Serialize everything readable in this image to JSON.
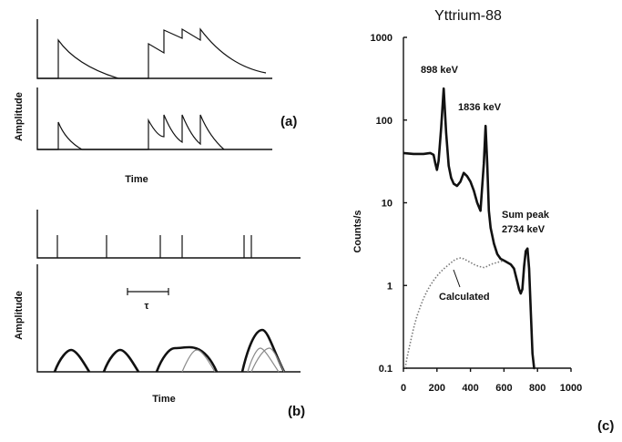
{
  "panel_a": {
    "ylabel": "Amplitude",
    "xlabel": "Time",
    "label": "(a)"
  },
  "panel_b": {
    "ylabel": "Amplitude",
    "xlabel": "Time",
    "tau": "τ",
    "label": "(b)"
  },
  "panel_c": {
    "label": "(c)"
  },
  "chart_data": {
    "type": "line",
    "title": "Yttrium-88",
    "xlabel": "",
    "ylabel": "Counts/s",
    "xlim": [
      0,
      1000
    ],
    "ylim": [
      0.1,
      1000
    ],
    "yscale": "log",
    "xticks": [
      0,
      200,
      400,
      600,
      800,
      1000
    ],
    "yticks": [
      0.1,
      1,
      10,
      100,
      1000
    ],
    "ytick_labels": [
      "0.1",
      "1",
      "10",
      "100",
      "1000"
    ],
    "annotations": [
      "898 keV",
      "1836 keV",
      "Sum peak",
      "2734 keV"
    ],
    "series": [
      {
        "name": "",
        "style": "thick-black",
        "x": [
          0,
          60,
          120,
          160,
          180,
          190,
          200,
          210,
          225,
          240,
          255,
          270,
          285,
          300,
          320,
          340,
          360,
          380,
          400,
          420,
          440,
          460,
          480,
          490,
          500,
          510,
          520,
          540,
          560,
          580,
          600,
          620,
          640,
          660,
          680,
          690,
          700,
          710,
          720,
          730,
          740,
          750,
          760,
          770,
          780,
          785
        ],
        "y": [
          40,
          39,
          39,
          40,
          38,
          30,
          25,
          32,
          80,
          240,
          70,
          28,
          20,
          17,
          16,
          18,
          23,
          21,
          18,
          14,
          10,
          8,
          30,
          85,
          30,
          8,
          5,
          3.2,
          2.4,
          2.1,
          2.0,
          1.9,
          1.8,
          1.6,
          1.1,
          0.9,
          0.8,
          0.9,
          1.7,
          2.6,
          2.8,
          1.6,
          0.5,
          0.15,
          0.1,
          0.1
        ]
      },
      {
        "name": "Calculated",
        "style": "dotted-gray",
        "x": [
          10,
          20,
          40,
          60,
          80,
          100,
          120,
          140,
          160,
          180,
          200,
          220,
          250,
          280,
          300,
          320,
          340,
          360,
          380,
          400,
          420,
          450,
          480,
          500,
          520,
          540,
          560,
          580,
          600
        ],
        "y": [
          0.1,
          0.13,
          0.2,
          0.3,
          0.42,
          0.55,
          0.7,
          0.85,
          1.0,
          1.15,
          1.3,
          1.45,
          1.65,
          1.85,
          2.0,
          2.1,
          2.15,
          2.1,
          2.0,
          1.9,
          1.8,
          1.7,
          1.65,
          1.7,
          1.8,
          1.85,
          1.9,
          1.95,
          2.0
        ]
      }
    ]
  }
}
